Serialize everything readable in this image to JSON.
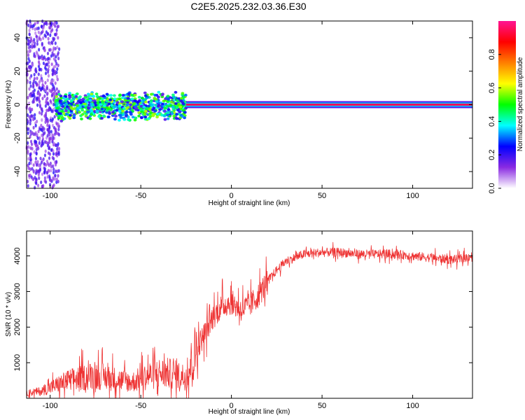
{
  "page": {
    "title": "C2E5.2025.232.03.36.E30"
  },
  "chart_data": [
    {
      "type": "heatmap",
      "title": "C2E5.2025.232.03.36.E30",
      "xlabel": "Height of straight line (km)",
      "ylabel": "Frequency (Hz)",
      "xlim": [
        -113,
        133
      ],
      "ylim": [
        -50,
        50
      ],
      "xticks": [
        -100,
        -50,
        0,
        50,
        100
      ],
      "yticks": [
        -40,
        -20,
        0,
        20,
        40
      ],
      "xtick_labels": [
        "-100",
        "-50",
        "0",
        "50",
        "100"
      ],
      "ytick_labels": [
        "-40",
        "-20",
        "0",
        "20",
        "40"
      ],
      "colorbar": {
        "label": "Normalized spectral amplitude",
        "range": [
          0,
          1
        ],
        "ticks": [
          0.0,
          0.2,
          0.4,
          0.6,
          0.8
        ],
        "tick_labels": [
          "0.0",
          "0.2",
          "0.4",
          "0.6",
          "0.8"
        ],
        "colormap": [
          "#ffffff",
          "#8a2be2",
          "#0000ff",
          "#00ffff",
          "#00ff00",
          "#ffff00",
          "#ff7f00",
          "#ff0000",
          "#ff1493"
        ]
      },
      "features": [
        {
          "description": "scattered noise",
          "x_range": [
            -113,
            -95
          ],
          "freq_range": [
            -50,
            50
          ],
          "amplitude": 0.15
        },
        {
          "description": "broadband signal band",
          "x_range": [
            -97,
            -25
          ],
          "freq_range": [
            -10,
            8
          ],
          "amplitude": 0.5
        },
        {
          "description": "narrow carrier line",
          "x_range": [
            -25,
            133
          ],
          "freq_center": 0,
          "amplitude": 0.95
        }
      ]
    },
    {
      "type": "line",
      "xlabel": "Height of straight line (km)",
      "ylabel": "SNR (10 * v/v)",
      "xlim": [
        -113,
        133
      ],
      "ylim": [
        0,
        4700
      ],
      "xticks": [
        -100,
        -50,
        0,
        50,
        100
      ],
      "yticks": [
        1000,
        2000,
        3000,
        4000
      ],
      "xtick_labels": [
        "-100",
        "-50",
        "0",
        "50",
        "100"
      ],
      "ytick_labels": [
        "1000",
        "2000",
        "3000",
        "4000"
      ],
      "series": [
        {
          "name": "SNR",
          "color": "#ee3333",
          "x": [
            -113,
            -105,
            -100,
            -95,
            -90,
            -85,
            -80,
            -75,
            -70,
            -65,
            -60,
            -55,
            -50,
            -45,
            -40,
            -35,
            -30,
            -25,
            -23,
            -20,
            -15,
            -10,
            -5,
            0,
            5,
            10,
            15,
            20,
            25,
            30,
            40,
            50,
            60,
            70,
            80,
            90,
            100,
            110,
            120,
            125,
            133
          ],
          "y": [
            150,
            200,
            300,
            400,
            500,
            550,
            600,
            650,
            600,
            550,
            500,
            450,
            550,
            650,
            700,
            700,
            650,
            600,
            900,
            1300,
            1800,
            2300,
            2600,
            2700,
            2500,
            2600,
            2900,
            3300,
            3600,
            3850,
            4050,
            4100,
            4100,
            4050,
            4050,
            4050,
            4000,
            3950,
            3900,
            3900,
            4000
          ]
        }
      ]
    }
  ]
}
